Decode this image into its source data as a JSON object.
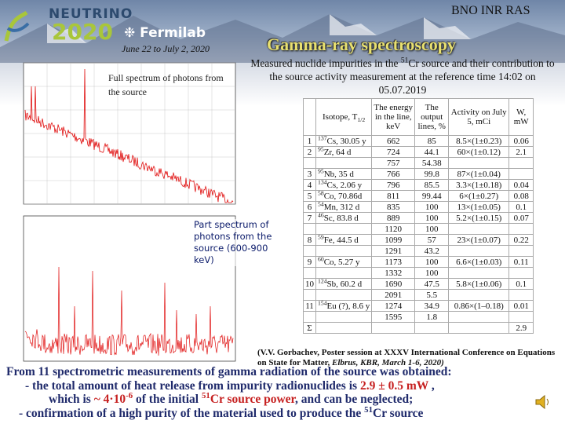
{
  "header": {
    "conference": [
      "NEUTRINO",
      "2020"
    ],
    "lab": "Fermilab",
    "dates": "June 22 to July 2, 2020",
    "org": "BNO INR RAS",
    "title": "Gamma-ray spectroscopy"
  },
  "subtitle": [
    "Measured nuclide impurities in the ",
    "51",
    "Cr source and their contribution to the source activity measurement at the reference time 14:02  on 05.07.2019"
  ],
  "plots": {
    "full_label": "Full spectrum of photons from the source",
    "part_label": "Part spectrum of photons from the source (600-900 keV)"
  },
  "table": {
    "header": {
      "isotope": [
        "Isotope, T",
        "1/2"
      ],
      "energy": "The energy in the line, keV",
      "output": "The output lines, %",
      "activity": "Activity on July 5, mCi",
      "w": "W, mW"
    },
    "rows": [
      {
        "n": "1",
        "mass": "137",
        "iso": "Cs, 30.05 y",
        "energy": "662",
        "output": "85",
        "activity": "8.5×(1±0.23)",
        "w": "0.06"
      },
      {
        "n": "2",
        "mass": "95",
        "iso": "Zr, 64 d",
        "energy": "724",
        "output": "44.1",
        "activity": "60×(1±0.12)",
        "w": "2.1"
      },
      {
        "energy": "757",
        "output": "54.38"
      },
      {
        "n": "3",
        "mass": "95",
        "iso": "Nb, 35 d",
        "energy": "766",
        "output": "99.8",
        "activity": "87×(1±0.04)"
      },
      {
        "n": "4",
        "mass": "134",
        "iso": "Cs, 2.06 y",
        "energy": "796",
        "output": "85.5",
        "activity": "3.3×(1±0.18)",
        "w": "0.04"
      },
      {
        "n": "5",
        "mass": "58",
        "iso": "Co, 70.86d",
        "energy": "811",
        "output": "99.44",
        "activity": "6×(1±0.27)",
        "w": "0.08"
      },
      {
        "n": "6",
        "mass": "54",
        "iso": "Mn, 312 d",
        "energy": "835",
        "output": "100",
        "activity": "13×(1±0.05)",
        "w": "0.1"
      },
      {
        "n": "7",
        "mass": "46",
        "iso": "Sc, 83.8 d",
        "energy": "889",
        "output": "100",
        "activity": "5.2×(1±0.15)",
        "w": "0.07"
      },
      {
        "energy": "1120",
        "output": "100"
      },
      {
        "n": "8",
        "mass": "59",
        "iso": "Fe, 44.5 d",
        "energy": "1099",
        "output": "57",
        "activity": "23×(1±0.07)",
        "w": "0.22"
      },
      {
        "energy": "1291",
        "output": "43.2"
      },
      {
        "n": "9",
        "mass": "60",
        "iso": "Co, 5.27 y",
        "energy": "1173",
        "output": "100",
        "activity": "6.6×(1±0.03)",
        "w": "0.11"
      },
      {
        "energy": "1332",
        "output": "100"
      },
      {
        "n": "10",
        "mass": "124",
        "iso": "Sb, 60.2 d",
        "energy": "1690",
        "output": "47.5",
        "activity": "5.8×(1±0.06)",
        "w": "0.1"
      },
      {
        "energy": "2091",
        "output": "5.5"
      },
      {
        "n": "11",
        "mass": "154",
        "iso": "Eu (?), 8.6 y",
        "energy": "1274",
        "output": "34.9",
        "activity": "0.86×(1–0.18)",
        "w": "0.01"
      },
      {
        "energy": "1595",
        "output": "1.8"
      },
      {
        "n": "Σ",
        "w": "2.9"
      }
    ]
  },
  "citation": [
    "(V.V. Gorbachev, Poster session at XXXV International Conference on Equations on State for Matter, ",
    "Elbrus, KBR, March 1-6, 2020)"
  ],
  "conclusion": {
    "line1": "From 11 spectrometric measurements of gamma radiation of the source was obtained:",
    "line2": [
      "- the total amount of heat release from impurity radionuclides  is ",
      "2.9 ± 0.5 mW",
      " ,"
    ],
    "line3": [
      "which is ",
      "~ 4·10",
      "-6",
      " of the initial ",
      "51",
      "Cr source power",
      ", and  can be neglected;"
    ],
    "line4": [
      "- confirmation of a high purity of the material used to produce the ",
      "51",
      "Cr source"
    ]
  }
}
